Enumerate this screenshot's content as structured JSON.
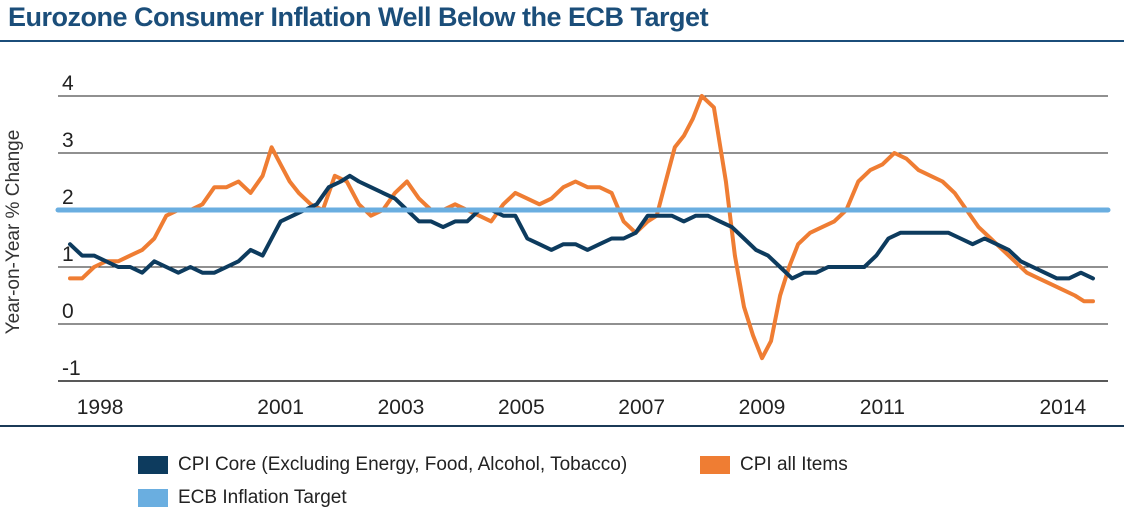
{
  "colors": {
    "title": "#1b4e7a",
    "core": "#0d3b5e",
    "all": "#ef7d33",
    "target": "#6aaee0",
    "axis": "#1b3a57",
    "grid": "#222222"
  },
  "chart_data": {
    "type": "line",
    "title": "Eurozone Consumer Inflation Well Below the ECB Target",
    "ylabel": "Year-on-Year % Change",
    "xlabel": "",
    "ylim": [
      -1,
      4
    ],
    "xlim": [
      1997.3,
      2014.75
    ],
    "yticks": [
      "-1",
      "0",
      "1",
      "2",
      "3",
      "4"
    ],
    "xticks": [
      {
        "value": 1998,
        "label": "1998"
      },
      {
        "value": 2001,
        "label": "2001"
      },
      {
        "value": 2003,
        "label": "2003"
      },
      {
        "value": 2005,
        "label": "2005"
      },
      {
        "value": 2007,
        "label": "2007"
      },
      {
        "value": 2009,
        "label": "2009"
      },
      {
        "value": 2011,
        "label": "2011"
      },
      {
        "value": 2014,
        "label": "2014"
      }
    ],
    "series": [
      {
        "name": "CPI Core (Excluding Energy, Food, Alcohol, Tobacco)",
        "color": "#0d3b5e",
        "x": [
          1997.5,
          1997.7,
          1997.9,
          1998.1,
          1998.3,
          1998.5,
          1998.7,
          1998.9,
          1999.1,
          1999.3,
          1999.5,
          1999.7,
          1999.9,
          2000.1,
          2000.3,
          2000.5,
          2000.7,
          2000.85,
          2001.0,
          2001.2,
          2001.4,
          2001.6,
          2001.8,
          2002.0,
          2002.15,
          2002.3,
          2002.5,
          2002.7,
          2002.9,
          2003.1,
          2003.3,
          2003.5,
          2003.7,
          2003.9,
          2004.1,
          2004.3,
          2004.5,
          2004.7,
          2004.9,
          2005.1,
          2005.3,
          2005.5,
          2005.7,
          2005.9,
          2006.1,
          2006.3,
          2006.5,
          2006.7,
          2006.9,
          2007.1,
          2007.3,
          2007.5,
          2007.7,
          2007.9,
          2008.1,
          2008.3,
          2008.5,
          2008.7,
          2008.9,
          2009.1,
          2009.3,
          2009.5,
          2009.7,
          2009.9,
          2010.1,
          2010.3,
          2010.5,
          2010.7,
          2010.9,
          2011.1,
          2011.3,
          2011.5,
          2011.7,
          2011.9,
          2012.1,
          2012.3,
          2012.5,
          2012.7,
          2012.9,
          2013.1,
          2013.3,
          2013.5,
          2013.7,
          2013.9,
          2014.1,
          2014.3,
          2014.5
        ],
        "values": [
          1.4,
          1.2,
          1.2,
          1.1,
          1.0,
          1.0,
          0.9,
          1.1,
          1.0,
          0.9,
          1.0,
          0.9,
          0.9,
          1.0,
          1.1,
          1.3,
          1.2,
          1.5,
          1.8,
          1.9,
          2.0,
          2.1,
          2.4,
          2.5,
          2.6,
          2.5,
          2.4,
          2.3,
          2.2,
          2.0,
          1.8,
          1.8,
          1.7,
          1.8,
          1.8,
          2.0,
          2.0,
          1.9,
          1.9,
          1.5,
          1.4,
          1.3,
          1.4,
          1.4,
          1.3,
          1.4,
          1.5,
          1.5,
          1.6,
          1.9,
          1.9,
          1.9,
          1.8,
          1.9,
          1.9,
          1.8,
          1.7,
          1.5,
          1.3,
          1.2,
          1.0,
          0.8,
          0.9,
          0.9,
          1.0,
          1.0,
          1.0,
          1.0,
          1.2,
          1.5,
          1.6,
          1.6,
          1.6,
          1.6,
          1.6,
          1.5,
          1.4,
          1.5,
          1.4,
          1.3,
          1.1,
          1.0,
          0.9,
          0.8,
          0.8,
          0.9,
          0.8
        ]
      },
      {
        "name": "CPI all Items",
        "color": "#ef7d33",
        "x": [
          1997.5,
          1997.7,
          1997.9,
          1998.1,
          1998.3,
          1998.5,
          1998.7,
          1998.9,
          1999.1,
          1999.3,
          1999.5,
          1999.7,
          1999.9,
          2000.1,
          2000.3,
          2000.5,
          2000.7,
          2000.85,
          2001.0,
          2001.15,
          2001.3,
          2001.5,
          2001.7,
          2001.9,
          2002.1,
          2002.3,
          2002.5,
          2002.7,
          2002.9,
          2003.1,
          2003.3,
          2003.5,
          2003.7,
          2003.9,
          2004.1,
          2004.3,
          2004.5,
          2004.7,
          2004.9,
          2005.1,
          2005.3,
          2005.5,
          2005.7,
          2005.9,
          2006.1,
          2006.3,
          2006.5,
          2006.7,
          2006.9,
          2007.1,
          2007.25,
          2007.4,
          2007.55,
          2007.7,
          2007.85,
          2008.0,
          2008.2,
          2008.4,
          2008.55,
          2008.7,
          2008.85,
          2009.0,
          2009.15,
          2009.3,
          2009.45,
          2009.6,
          2009.8,
          2010.0,
          2010.2,
          2010.4,
          2010.6,
          2010.8,
          2011.0,
          2011.2,
          2011.4,
          2011.6,
          2011.8,
          2012.0,
          2012.2,
          2012.4,
          2012.6,
          2012.8,
          2013.0,
          2013.2,
          2013.4,
          2013.6,
          2013.8,
          2014.0,
          2014.2,
          2014.35,
          2014.5
        ],
        "values": [
          0.8,
          0.8,
          1.0,
          1.1,
          1.1,
          1.2,
          1.3,
          1.5,
          1.9,
          2.0,
          2.0,
          2.1,
          2.4,
          2.4,
          2.5,
          2.3,
          2.6,
          3.1,
          2.8,
          2.5,
          2.3,
          2.1,
          2.0,
          2.6,
          2.5,
          2.1,
          1.9,
          2.0,
          2.3,
          2.5,
          2.2,
          2.0,
          2.0,
          2.1,
          2.0,
          1.9,
          1.8,
          2.1,
          2.3,
          2.2,
          2.1,
          2.2,
          2.4,
          2.5,
          2.4,
          2.4,
          2.3,
          1.8,
          1.6,
          1.8,
          1.9,
          2.5,
          3.1,
          3.3,
          3.6,
          4.0,
          3.8,
          2.5,
          1.2,
          0.3,
          -0.2,
          -0.6,
          -0.3,
          0.5,
          1.0,
          1.4,
          1.6,
          1.7,
          1.8,
          2.0,
          2.5,
          2.7,
          2.8,
          3.0,
          2.9,
          2.7,
          2.6,
          2.5,
          2.3,
          2.0,
          1.7,
          1.5,
          1.3,
          1.1,
          0.9,
          0.8,
          0.7,
          0.6,
          0.5,
          0.4,
          0.4
        ]
      },
      {
        "name": "ECB Inflation Target",
        "color": "#6aaee0",
        "x": [
          1997.3,
          2014.75
        ],
        "values": [
          2.0,
          2.0
        ]
      }
    ],
    "legend": [
      {
        "label": "CPI Core (Excluding Energy, Food, Alcohol, Tobacco)",
        "color": "#0d3b5e"
      },
      {
        "label": "CPI all Items",
        "color": "#ef7d33"
      },
      {
        "label": "ECB Inflation Target",
        "color": "#6aaee0"
      }
    ]
  }
}
